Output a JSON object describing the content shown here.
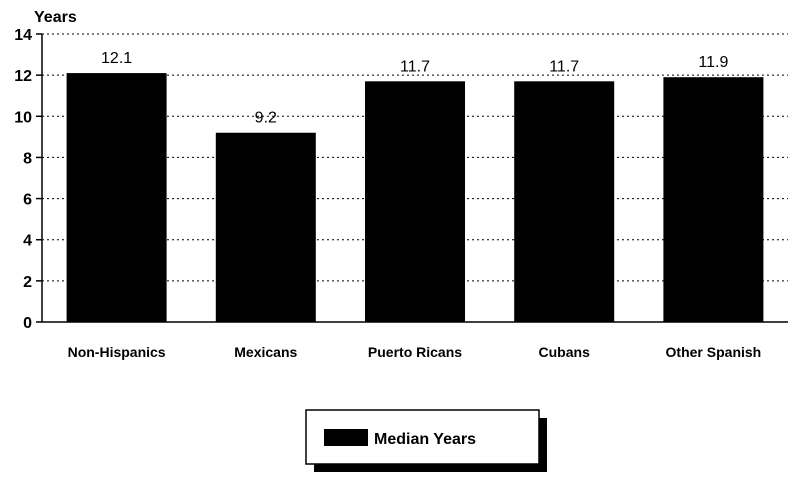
{
  "chart_data": {
    "type": "bar",
    "ylabel": "Years",
    "ylim": [
      0,
      14
    ],
    "yticks": [
      0,
      2,
      4,
      6,
      8,
      10,
      12,
      14
    ],
    "grid": true,
    "grid_style": "dotted",
    "categories": [
      "Non-Hispanics",
      "Mexicans",
      "Puerto Ricans",
      "Cubans",
      "Other Spanish"
    ],
    "series": [
      {
        "name": "Median Years",
        "values": [
          12.1,
          9.2,
          11.7,
          11.7,
          11.9
        ],
        "color": "#000000"
      }
    ],
    "data_labels": [
      "12.1",
      "9.2",
      "11.7",
      "11.7",
      "11.9"
    ],
    "legend": {
      "position": "bottom-center",
      "entries": [
        "Median Years"
      ]
    }
  }
}
